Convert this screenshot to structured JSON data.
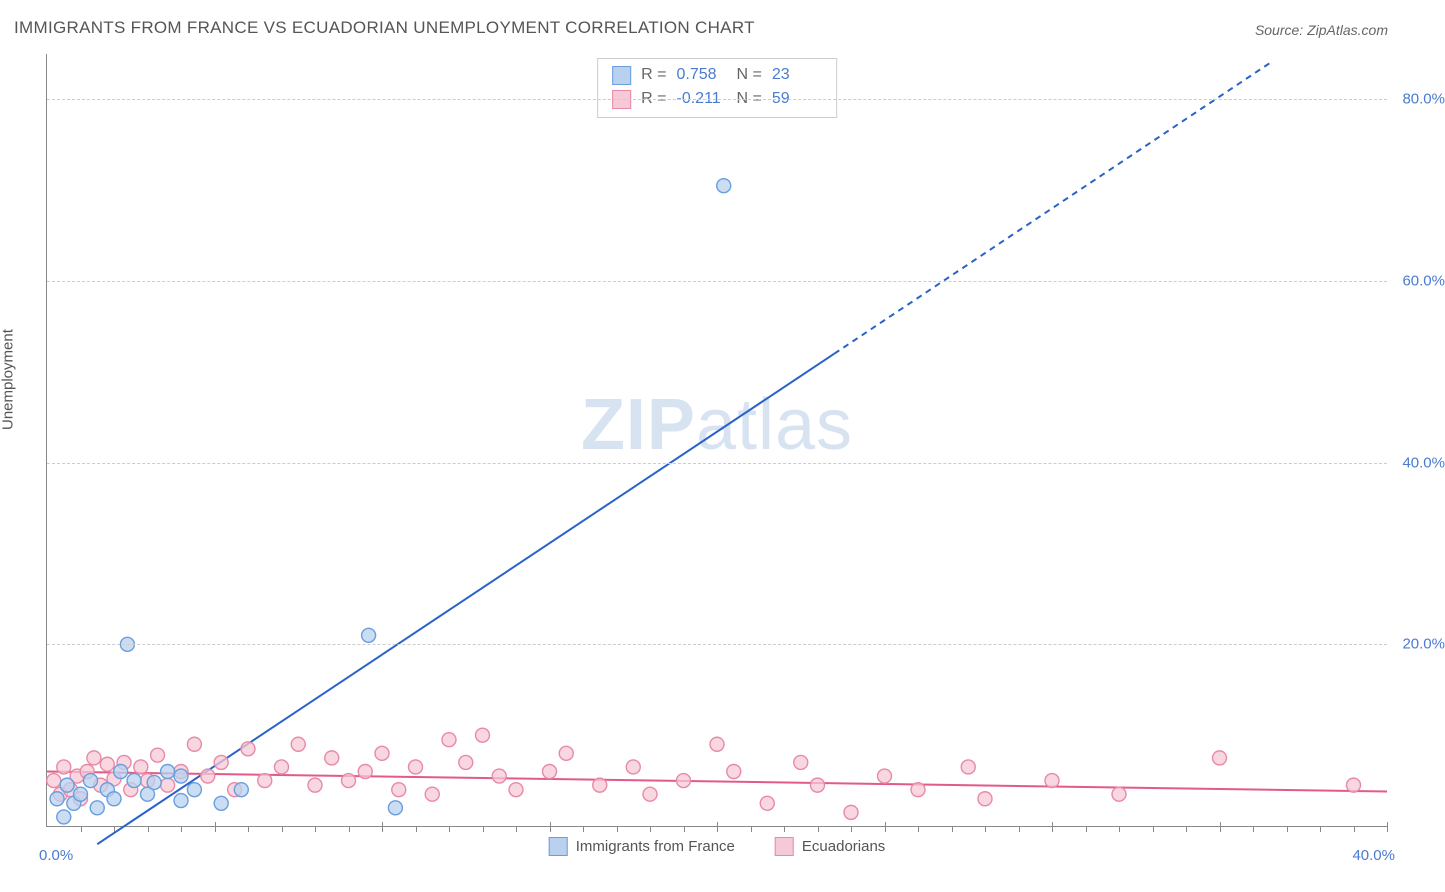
{
  "title": "IMMIGRANTS FROM FRANCE VS ECUADORIAN UNEMPLOYMENT CORRELATION CHART",
  "source": "Source: ZipAtlas.com",
  "ylabel": "Unemployment",
  "watermark_a": "ZIP",
  "watermark_b": "atlas",
  "chart": {
    "type": "scatter",
    "xlim": [
      0,
      40
    ],
    "ylim": [
      0,
      85
    ],
    "ytick_step": 20,
    "ytick_labels": [
      "20.0%",
      "40.0%",
      "60.0%",
      "80.0%"
    ],
    "xlabel_min": "0.0%",
    "xlabel_max": "40.0%",
    "xtick_count_minor": 40,
    "background_color": "#ffffff",
    "grid_color": "#cccccc",
    "axis_color": "#888888",
    "tick_label_color": "#4a7bd0",
    "marker_radius": 7,
    "marker_stroke_width": 1.4,
    "series": [
      {
        "id": "france",
        "name": "Immigrants from France",
        "color_fill": "#b9d1ef",
        "color_stroke": "#6a9edc",
        "R": "0.758",
        "N": "23",
        "trend": {
          "x1": 1.5,
          "y1": -2,
          "x2": 23.5,
          "y2": 52,
          "dash_from_x": 23.5,
          "dash_to_x": 36.5,
          "dash_to_y": 84,
          "color": "#2a62c9",
          "width": 2
        },
        "points": [
          [
            0.3,
            3.0
          ],
          [
            0.5,
            1.0
          ],
          [
            0.6,
            4.5
          ],
          [
            0.8,
            2.5
          ],
          [
            1.0,
            3.5
          ],
          [
            1.3,
            5.0
          ],
          [
            1.5,
            2.0
          ],
          [
            1.8,
            4.0
          ],
          [
            2.0,
            3.0
          ],
          [
            2.2,
            6.0
          ],
          [
            2.4,
            20.0
          ],
          [
            2.6,
            5.0
          ],
          [
            3.0,
            3.5
          ],
          [
            3.2,
            4.8
          ],
          [
            3.6,
            6.0
          ],
          [
            4.0,
            2.8
          ],
          [
            4.0,
            5.5
          ],
          [
            4.4,
            4.0
          ],
          [
            5.2,
            2.5
          ],
          [
            5.8,
            4.0
          ],
          [
            9.6,
            21.0
          ],
          [
            10.4,
            2.0
          ],
          [
            20.2,
            70.5
          ]
        ]
      },
      {
        "id": "ecuador",
        "name": "Ecuadorians",
        "color_fill": "#f6c9d6",
        "color_stroke": "#e889a7",
        "R": "-0.211",
        "N": "59",
        "trend": {
          "x1": 0,
          "y1": 6.0,
          "x2": 40,
          "y2": 3.8,
          "color": "#e15a8a",
          "width": 2
        },
        "points": [
          [
            0.2,
            5.0
          ],
          [
            0.4,
            3.5
          ],
          [
            0.5,
            6.5
          ],
          [
            0.7,
            4.0
          ],
          [
            0.9,
            5.5
          ],
          [
            1.0,
            3.0
          ],
          [
            1.2,
            6.0
          ],
          [
            1.4,
            7.5
          ],
          [
            1.6,
            4.5
          ],
          [
            1.8,
            6.8
          ],
          [
            2.0,
            5.2
          ],
          [
            2.3,
            7.0
          ],
          [
            2.5,
            4.0
          ],
          [
            2.8,
            6.5
          ],
          [
            3.0,
            5.0
          ],
          [
            3.3,
            7.8
          ],
          [
            3.6,
            4.5
          ],
          [
            4.0,
            6.0
          ],
          [
            4.4,
            9.0
          ],
          [
            4.8,
            5.5
          ],
          [
            5.2,
            7.0
          ],
          [
            5.6,
            4.0
          ],
          [
            6.0,
            8.5
          ],
          [
            6.5,
            5.0
          ],
          [
            7.0,
            6.5
          ],
          [
            7.5,
            9.0
          ],
          [
            8.0,
            4.5
          ],
          [
            8.5,
            7.5
          ],
          [
            9.0,
            5.0
          ],
          [
            9.5,
            6.0
          ],
          [
            10.0,
            8.0
          ],
          [
            10.5,
            4.0
          ],
          [
            11.0,
            6.5
          ],
          [
            11.5,
            3.5
          ],
          [
            12.0,
            9.5
          ],
          [
            12.5,
            7.0
          ],
          [
            13.0,
            10.0
          ],
          [
            13.5,
            5.5
          ],
          [
            14.0,
            4.0
          ],
          [
            15.0,
            6.0
          ],
          [
            15.5,
            8.0
          ],
          [
            16.5,
            4.5
          ],
          [
            17.5,
            6.5
          ],
          [
            18.0,
            3.5
          ],
          [
            19.0,
            5.0
          ],
          [
            20.0,
            9.0
          ],
          [
            20.5,
            6.0
          ],
          [
            21.5,
            2.5
          ],
          [
            22.5,
            7.0
          ],
          [
            23.0,
            4.5
          ],
          [
            24.0,
            1.5
          ],
          [
            25.0,
            5.5
          ],
          [
            26.0,
            4.0
          ],
          [
            27.5,
            6.5
          ],
          [
            28.0,
            3.0
          ],
          [
            30.0,
            5.0
          ],
          [
            32.0,
            3.5
          ],
          [
            35.0,
            7.5
          ],
          [
            39.0,
            4.5
          ]
        ]
      }
    ]
  },
  "legend_top_rows": [
    {
      "swatch": 0,
      "R_label": "R =",
      "R": "0.758",
      "N_label": "N =",
      "N": "23"
    },
    {
      "swatch": 1,
      "R_label": "R =",
      "R": "-0.211",
      "N_label": "N =",
      "N": "59"
    }
  ]
}
